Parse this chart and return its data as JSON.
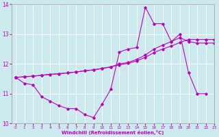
{
  "xlabel": "Windchill (Refroidissement éolien,°C)",
  "xlim": [
    -0.5,
    23
  ],
  "ylim": [
    10,
    14
  ],
  "yticks": [
    10,
    11,
    12,
    13,
    14
  ],
  "xticks": [
    0,
    1,
    2,
    3,
    4,
    5,
    6,
    7,
    8,
    9,
    10,
    11,
    12,
    13,
    14,
    15,
    16,
    17,
    18,
    19,
    20,
    21,
    22,
    23
  ],
  "bg_color": "#cce9ed",
  "line_color": "#bb00bb",
  "line1_x": [
    0,
    1,
    2,
    3,
    4,
    5,
    6,
    7,
    8,
    9,
    10,
    11,
    12,
    13,
    14,
    15,
    16,
    17,
    18,
    19,
    20,
    21,
    22
  ],
  "line1_y": [
    11.55,
    11.35,
    11.3,
    10.9,
    10.75,
    10.6,
    10.5,
    10.5,
    10.3,
    10.2,
    10.65,
    11.15,
    12.4,
    12.5,
    12.55,
    13.9,
    13.35,
    13.35,
    12.75,
    13.0,
    11.7,
    11.0,
    11.0
  ],
  "line2_x": [
    0,
    1,
    2,
    3,
    4,
    5,
    6,
    7,
    8,
    9,
    10,
    11,
    12,
    13,
    14,
    15,
    16,
    17,
    18,
    19,
    20,
    21,
    22,
    23
  ],
  "line2_y": [
    11.55,
    11.57,
    11.59,
    11.62,
    11.65,
    11.67,
    11.7,
    11.73,
    11.77,
    11.8,
    11.85,
    11.9,
    12.0,
    12.05,
    12.15,
    12.3,
    12.5,
    12.63,
    12.75,
    12.88,
    12.75,
    12.7,
    12.7,
    12.7
  ],
  "line3_x": [
    0,
    1,
    2,
    3,
    4,
    5,
    6,
    7,
    8,
    9,
    10,
    11,
    12,
    13,
    14,
    15,
    16,
    17,
    18,
    19,
    20,
    21,
    22,
    23
  ],
  "line3_y": [
    11.55,
    11.57,
    11.59,
    11.62,
    11.65,
    11.67,
    11.7,
    11.73,
    11.77,
    11.8,
    11.85,
    11.9,
    11.97,
    12.02,
    12.1,
    12.22,
    12.38,
    12.5,
    12.6,
    12.72,
    12.82,
    12.82,
    12.82,
    12.82
  ]
}
